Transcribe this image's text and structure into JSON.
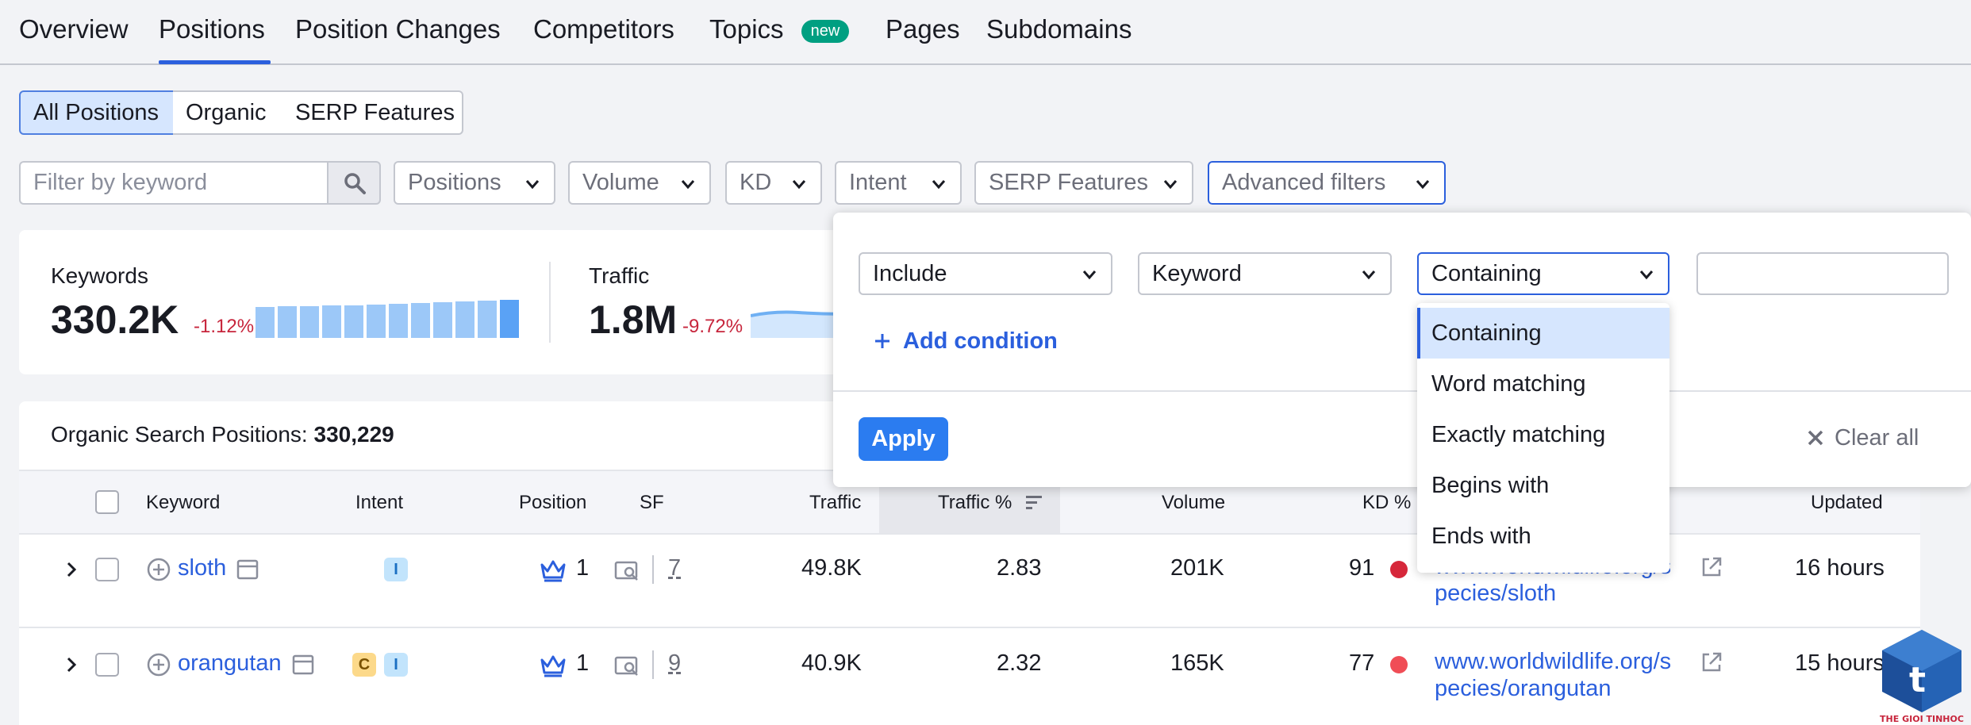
{
  "tabs": [
    {
      "label": "Overview"
    },
    {
      "label": "Positions"
    },
    {
      "label": "Position Changes"
    },
    {
      "label": "Competitors"
    },
    {
      "label": "Topics"
    },
    {
      "label": "Pages"
    },
    {
      "label": "Subdomains"
    }
  ],
  "active_tab": "Positions",
  "new_badge": "new",
  "segments": [
    "All Positions",
    "Organic",
    "SERP Features"
  ],
  "filter": {
    "placeholder": "Filter by keyword",
    "dropdowns": [
      "Positions",
      "Volume",
      "KD",
      "Intent",
      "SERP Features",
      "Advanced filters"
    ]
  },
  "summary": {
    "keywords_label": "Keywords",
    "keywords_value": "330.2K",
    "keywords_delta": "-1.12%",
    "keywords_trend": [
      0.78,
      0.8,
      0.8,
      0.82,
      0.82,
      0.84,
      0.86,
      0.88,
      0.9,
      0.92,
      0.94,
      0.96
    ],
    "traffic_label": "Traffic",
    "traffic_value": "1.8M",
    "traffic_delta": "-9.72%"
  },
  "table": {
    "title_label": "Organic Search Positions:",
    "title_count": "330,229",
    "headers": [
      "Keyword",
      "Intent",
      "Position",
      "SF",
      "Traffic",
      "Traffic %",
      "Volume",
      "KD %",
      "Updated"
    ],
    "rows": [
      {
        "keyword": "sloth",
        "intents": [
          "I"
        ],
        "position": "1",
        "sf": "7",
        "traffic": "49.8K",
        "traffic_pct": "2.83",
        "volume": "201K",
        "kd": "91",
        "kd_color": "#d6273a",
        "url_line1": "www.worldwildlife.org/s",
        "url_line2": "pecies/sloth",
        "updated": "16 hours"
      },
      {
        "keyword": "orangutan",
        "intents": [
          "C",
          "I"
        ],
        "position": "1",
        "sf": "9",
        "traffic": "40.9K",
        "traffic_pct": "2.32",
        "volume": "165K",
        "kd": "77",
        "kd_color": "#f04d56",
        "url_line1": "www.worldwildlife.org/s",
        "url_line2": "pecies/orangutan",
        "updated": "15 hours"
      }
    ]
  },
  "advanced": {
    "include": "Include",
    "field": "Keyword",
    "operator": "Containing",
    "value": "",
    "add_condition": "Add condition",
    "apply": "Apply",
    "clear_all": "Clear all",
    "operator_options": [
      "Containing",
      "Word matching",
      "Exactly matching",
      "Begins with",
      "Ends with"
    ]
  },
  "watermark": "THE GIOI TINHOC",
  "colors": {
    "accent": "#2b5fdd",
    "apply": "#2b7cf0",
    "negative": "#c7253c",
    "badge_new": "#009f81"
  }
}
